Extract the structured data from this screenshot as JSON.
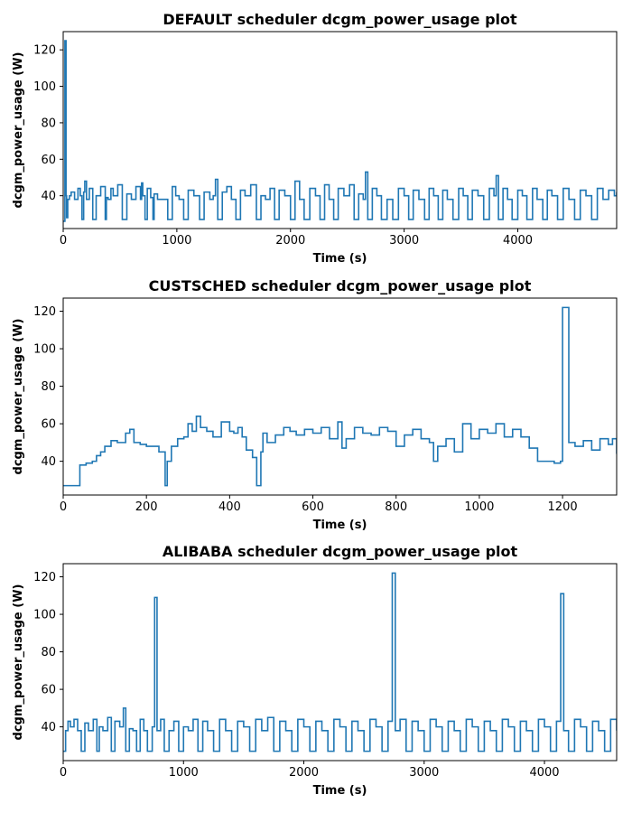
{
  "chart_data": [
    {
      "type": "line",
      "title": "DEFAULT scheduler dcgm_power_usage plot",
      "xlabel": "Time (s)",
      "ylabel": "dcgm_power_usage (W)",
      "xlim": [
        0,
        4870
      ],
      "ylim": [
        22,
        130
      ],
      "xticks": [
        0,
        1000,
        2000,
        3000,
        4000
      ],
      "yticks": [
        40,
        60,
        80,
        100,
        120
      ],
      "grid": false,
      "line_color": "#1f77b4",
      "series": [
        {
          "x": [
            0,
            15,
            25,
            30,
            40,
            55,
            70,
            100,
            130,
            150,
            165,
            180,
            190,
            205,
            230,
            260,
            290,
            330,
            370,
            380,
            395,
            420,
            440,
            480,
            520,
            560,
            600,
            640,
            680,
            690,
            700,
            720,
            740,
            770,
            790,
            800,
            830,
            880,
            920,
            960,
            990,
            1020,
            1060,
            1100,
            1150,
            1200,
            1240,
            1290,
            1320,
            1340,
            1360,
            1400,
            1440,
            1480,
            1520,
            1560,
            1600,
            1650,
            1700,
            1740,
            1780,
            1820,
            1860,
            1900,
            1950,
            2000,
            2040,
            2080,
            2120,
            2170,
            2220,
            2260,
            2300,
            2340,
            2380,
            2420,
            2470,
            2520,
            2560,
            2600,
            2640,
            2660,
            2680,
            2720,
            2760,
            2800,
            2850,
            2900,
            2950,
            3000,
            3040,
            3080,
            3130,
            3180,
            3220,
            3260,
            3300,
            3340,
            3380,
            3430,
            3480,
            3520,
            3560,
            3600,
            3650,
            3700,
            3750,
            3790,
            3810,
            3830,
            3870,
            3910,
            3950,
            4000,
            4040,
            4080,
            4130,
            4170,
            4220,
            4260,
            4300,
            4350,
            4400,
            4450,
            4500,
            4550,
            4600,
            4650,
            4700,
            4750,
            4800,
            4850,
            4870
          ],
          "y": [
            26,
            125,
            40,
            28,
            38,
            40,
            42,
            38,
            44,
            40,
            27,
            42,
            48,
            38,
            44,
            27,
            40,
            45,
            27,
            39,
            38,
            44,
            40,
            46,
            27,
            41,
            38,
            45,
            38,
            47,
            40,
            27,
            44,
            39,
            27,
            41,
            38,
            38,
            27,
            45,
            40,
            38,
            27,
            43,
            40,
            27,
            42,
            38,
            40,
            49,
            27,
            42,
            45,
            38,
            27,
            43,
            40,
            46,
            27,
            40,
            38,
            44,
            27,
            43,
            40,
            27,
            48,
            38,
            27,
            44,
            40,
            27,
            46,
            38,
            27,
            44,
            40,
            46,
            27,
            41,
            38,
            53,
            27,
            44,
            40,
            27,
            38,
            27,
            44,
            40,
            27,
            43,
            38,
            27,
            44,
            40,
            27,
            43,
            38,
            27,
            44,
            40,
            27,
            43,
            40,
            27,
            44,
            40,
            51,
            27,
            44,
            38,
            27,
            43,
            40,
            27,
            44,
            38,
            27,
            43,
            40,
            27,
            44,
            38,
            27,
            43,
            40,
            27,
            44,
            38,
            43,
            40,
            42
          ]
        }
      ]
    },
    {
      "type": "line",
      "title": "CUSTSCHED scheduler dcgm_power_usage plot",
      "xlabel": "Time (s)",
      "ylabel": "dcgm_power_usage (W)",
      "xlim": [
        0,
        1330
      ],
      "ylim": [
        22,
        127
      ],
      "xticks": [
        0,
        200,
        400,
        600,
        800,
        1000,
        1200
      ],
      "yticks": [
        40,
        60,
        80,
        100,
        120
      ],
      "grid": false,
      "line_color": "#1f77b4",
      "series": [
        {
          "x": [
            0,
            35,
            40,
            55,
            70,
            80,
            90,
            100,
            115,
            130,
            150,
            160,
            170,
            185,
            200,
            230,
            245,
            250,
            260,
            275,
            290,
            300,
            310,
            320,
            330,
            345,
            360,
            380,
            400,
            410,
            420,
            430,
            440,
            455,
            465,
            475,
            480,
            490,
            510,
            530,
            545,
            560,
            580,
            600,
            620,
            640,
            660,
            670,
            680,
            700,
            720,
            740,
            760,
            780,
            800,
            820,
            840,
            860,
            880,
            890,
            900,
            920,
            940,
            960,
            980,
            1000,
            1020,
            1040,
            1060,
            1080,
            1100,
            1120,
            1140,
            1160,
            1180,
            1195,
            1200,
            1210,
            1215,
            1230,
            1250,
            1270,
            1290,
            1310,
            1320,
            1330
          ],
          "y": [
            27,
            27,
            38,
            39,
            40,
            43,
            45,
            48,
            51,
            50,
            55,
            57,
            50,
            49,
            48,
            45,
            27,
            40,
            48,
            52,
            53,
            60,
            56,
            64,
            58,
            56,
            53,
            61,
            56,
            55,
            58,
            53,
            46,
            42,
            27,
            45,
            55,
            50,
            54,
            58,
            56,
            54,
            57,
            55,
            58,
            52,
            61,
            47,
            52,
            58,
            55,
            54,
            58,
            56,
            48,
            54,
            57,
            52,
            50,
            40,
            48,
            52,
            45,
            60,
            52,
            57,
            55,
            60,
            53,
            57,
            53,
            47,
            40,
            40,
            39,
            40,
            122,
            122,
            50,
            48,
            51,
            46,
            52,
            49,
            52,
            44
          ]
        }
      ]
    },
    {
      "type": "line",
      "title": "ALIBABA scheduler dcgm_power_usage plot",
      "xlabel": "Time (s)",
      "ylabel": "dcgm_power_usage (W)",
      "xlim": [
        0,
        4600
      ],
      "ylim": [
        22,
        127
      ],
      "xticks": [
        0,
        1000,
        2000,
        3000,
        4000
      ],
      "yticks": [
        40,
        60,
        80,
        100,
        120
      ],
      "grid": false,
      "line_color": "#1f77b4",
      "series": [
        {
          "x": [
            0,
            20,
            40,
            60,
            90,
            120,
            150,
            180,
            210,
            250,
            280,
            300,
            330,
            370,
            400,
            430,
            470,
            500,
            520,
            550,
            580,
            610,
            640,
            670,
            700,
            740,
            760,
            780,
            810,
            840,
            880,
            920,
            960,
            1000,
            1040,
            1080,
            1120,
            1160,
            1200,
            1250,
            1300,
            1350,
            1400,
            1450,
            1500,
            1550,
            1600,
            1650,
            1700,
            1750,
            1800,
            1850,
            1900,
            1950,
            2000,
            2050,
            2100,
            2150,
            2200,
            2250,
            2300,
            2350,
            2400,
            2450,
            2500,
            2550,
            2600,
            2650,
            2700,
            2735,
            2760,
            2800,
            2850,
            2900,
            2950,
            3000,
            3050,
            3100,
            3150,
            3200,
            3250,
            3300,
            3350,
            3400,
            3450,
            3500,
            3550,
            3600,
            3650,
            3700,
            3750,
            3800,
            3850,
            3900,
            3950,
            4000,
            4050,
            4100,
            4135,
            4160,
            4200,
            4250,
            4300,
            4350,
            4400,
            4450,
            4500,
            4550,
            4600
          ],
          "y": [
            27,
            38,
            43,
            40,
            44,
            38,
            27,
            42,
            38,
            44,
            27,
            40,
            38,
            45,
            27,
            43,
            40,
            50,
            27,
            39,
            38,
            27,
            44,
            38,
            27,
            40,
            109,
            38,
            44,
            27,
            38,
            43,
            27,
            40,
            38,
            44,
            27,
            43,
            38,
            27,
            44,
            38,
            27,
            43,
            40,
            27,
            44,
            38,
            45,
            27,
            43,
            38,
            27,
            44,
            40,
            27,
            43,
            38,
            27,
            44,
            40,
            27,
            43,
            38,
            27,
            44,
            40,
            27,
            43,
            122,
            38,
            44,
            27,
            43,
            38,
            27,
            44,
            40,
            27,
            43,
            38,
            27,
            44,
            40,
            27,
            43,
            38,
            27,
            44,
            40,
            27,
            43,
            38,
            27,
            44,
            40,
            27,
            43,
            111,
            38,
            27,
            44,
            40,
            27,
            43,
            38,
            27,
            44,
            38
          ]
        }
      ]
    }
  ]
}
